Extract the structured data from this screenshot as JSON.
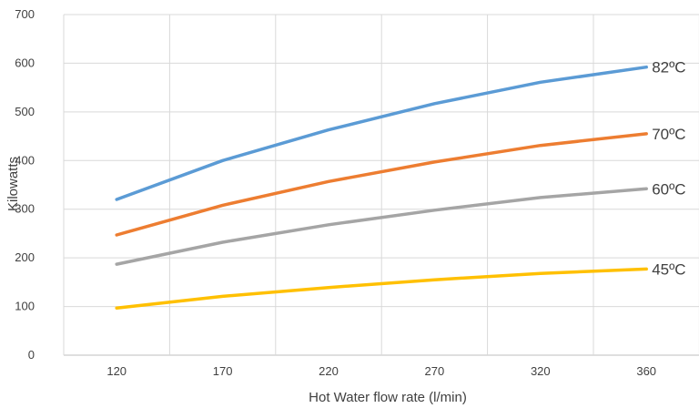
{
  "chart_data": {
    "type": "line",
    "title": "",
    "xlabel": "Hot Water flow rate (l/min)",
    "ylabel": "Kilowatts",
    "x": [
      120,
      170,
      220,
      270,
      320,
      360
    ],
    "x_tick_labels": [
      "120",
      "170",
      "220",
      "270",
      "320",
      "360"
    ],
    "y_tick_labels": [
      "0",
      "100",
      "200",
      "300",
      "400",
      "500",
      "600",
      "700"
    ],
    "ylim": [
      0,
      700
    ],
    "grid": true,
    "legend": "none",
    "series": [
      {
        "name": "82ºC",
        "color": "#5B9BD5",
        "values": [
          320,
          400,
          463,
          517,
          561,
          592
        ]
      },
      {
        "name": "70ºC",
        "color": "#ED7D31",
        "values": [
          247,
          308,
          357,
          397,
          431,
          455
        ]
      },
      {
        "name": "60ºC",
        "color": "#A5A5A5",
        "values": [
          187,
          232,
          268,
          298,
          324,
          342
        ]
      },
      {
        "name": "45ºC",
        "color": "#FFC000",
        "values": [
          97,
          121,
          139,
          155,
          168,
          177
        ]
      }
    ]
  }
}
